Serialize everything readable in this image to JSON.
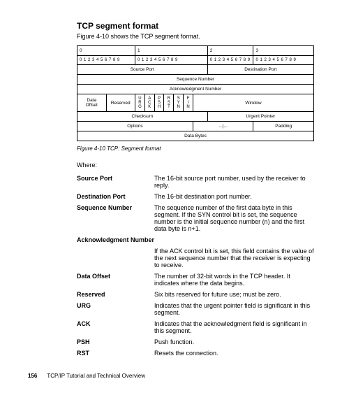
{
  "title": "TCP segment format",
  "intro": "Figure 4-10 shows the TCP segment format.",
  "diagram": {
    "byteHeaders": [
      "0",
      "1",
      "2",
      "3"
    ],
    "bitPattern": "0 1 2 3 4 5 6 7 8 9",
    "rows": {
      "sourcePort": "Source Port",
      "destPort": "Destination Port",
      "seqNum": "Sequence Number",
      "ackNum": "Acknowledgment Number",
      "dataOffset": "Data\nOffset",
      "reserved": "Reserved",
      "flags": {
        "urg": "U\nR\nG",
        "ack": "A\nC\nK",
        "psh": "P\nS\nH",
        "rst": "R\nS\nT",
        "syn": "S\nY\nN",
        "fin": "F\nI\nN"
      },
      "window": "Window",
      "checksum": "Checksum",
      "urgentPointer": "Urgent Pointer",
      "options": "Options",
      "optionsSep": "...|...",
      "padding": "Padding",
      "dataBytes": "Data Bytes"
    }
  },
  "caption": "Figure 4-10   TCP: Segment format",
  "whereLabel": "Where:",
  "defs": [
    {
      "term": "Source Port",
      "desc": "The 16-bit source port number, used by the receiver to reply."
    },
    {
      "term": "Destination Port",
      "desc": "The 16-bit destination port number."
    },
    {
      "term": "Sequence Number",
      "desc": "The sequence number of the first data byte in this segment. If the SYN control bit is set, the sequence number is the initial sequence number (n) and the first data byte is n+1."
    },
    {
      "term": "Acknowledgment Number",
      "fullrow": true,
      "desc": "If the ACK control bit is set, this field contains the value of the next sequence number that the receiver is expecting to receive."
    },
    {
      "term": "Data Offset",
      "desc": "The number of 32-bit words in the TCP header. It indicates where the data begins."
    },
    {
      "term": "Reserved",
      "desc": "Six bits reserved for future use; must be zero."
    },
    {
      "term": "URG",
      "desc": "Indicates that the urgent pointer field is significant in this segment."
    },
    {
      "term": "ACK",
      "desc": "Indicates that the acknowledgment field is significant in this segment."
    },
    {
      "term": "PSH",
      "desc": "Push function."
    },
    {
      "term": "RST",
      "desc": "Resets the connection."
    }
  ],
  "footer": {
    "page": "156",
    "title": "TCP/IP Tutorial and Technical Overview"
  }
}
